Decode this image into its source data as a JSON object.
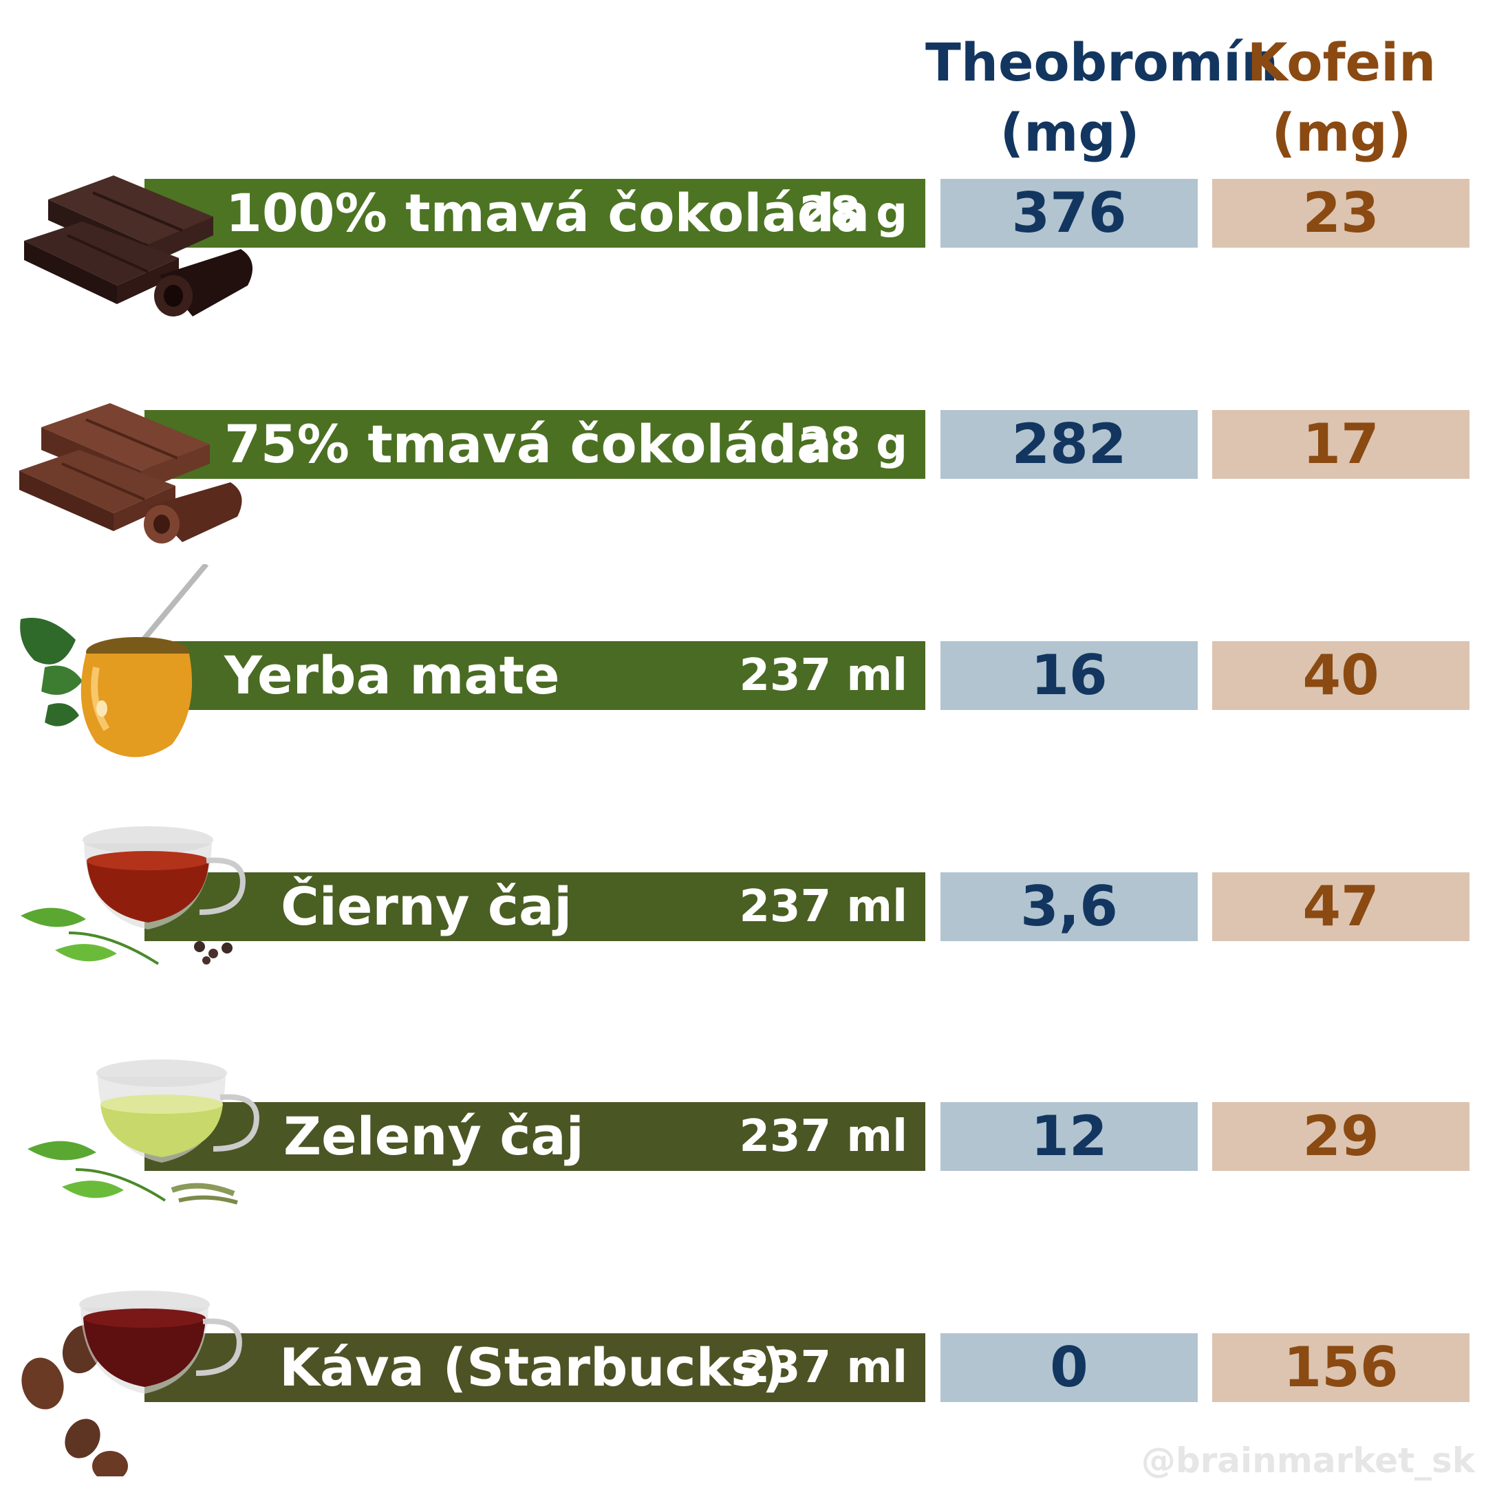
{
  "header": {
    "theobromine_line1": "Theobromín",
    "theobromine_line2": "(mg)",
    "caffeine_line1": "Kofein",
    "caffeine_line2": "(mg)"
  },
  "rows": [
    {
      "name": "100% tmavá čokoláda",
      "portion": "28 g",
      "theobromine": "376",
      "caffeine": "23",
      "bar_color": "#4c7423",
      "icon": "dark-chocolate-icon"
    },
    {
      "name": "75% tmavá čokoláda",
      "portion": "28 g",
      "theobromine": "282",
      "caffeine": "17",
      "bar_color": "#4b7022",
      "icon": "milk-chocolate-icon"
    },
    {
      "name": "Yerba mate",
      "portion": "237 ml",
      "theobromine": "16",
      "caffeine": "40",
      "bar_color": "#4a6b23",
      "icon": "yerba-mate-gourd-icon"
    },
    {
      "name": "Čierny čaj",
      "portion": "237 ml",
      "theobromine": "3,6",
      "caffeine": "47",
      "bar_color": "#4a5f22",
      "icon": "black-tea-cup-icon"
    },
    {
      "name": "Zelený čaj",
      "portion": "237 ml",
      "theobromine": "12",
      "caffeine": "29",
      "bar_color": "#4a5624",
      "icon": "green-tea-cup-icon"
    },
    {
      "name": "Káva (Starbucks)",
      "portion": "237 ml",
      "theobromine": "0",
      "caffeine": "156",
      "bar_color": "#4d5324",
      "icon": "coffee-cup-beans-icon"
    }
  ],
  "chart_data": {
    "type": "table",
    "columns": [
      "Theobromín (mg)",
      "Kofein (mg)"
    ],
    "categories": [
      "100% tmavá čokoláda",
      "75% tmavá čokoláda",
      "Yerba mate",
      "Čierny čaj",
      "Zelený čaj",
      "Káva (Starbucks)"
    ],
    "portions": [
      "28 g",
      "28 g",
      "237 ml",
      "237 ml",
      "237 ml",
      "237 ml"
    ],
    "series": [
      {
        "name": "Theobromín (mg)",
        "values": [
          376,
          282,
          16,
          3.6,
          12,
          0
        ]
      },
      {
        "name": "Kofein (mg)",
        "values": [
          23,
          17,
          40,
          47,
          29,
          156
        ]
      }
    ],
    "colors": {
      "theobromine_text": "#12365f",
      "theobromine_cell": "#b2c4d0",
      "caffeine_text": "#8a4a12",
      "caffeine_cell": "#dcc4b0"
    }
  },
  "watermark": "@brainmarket_sk"
}
